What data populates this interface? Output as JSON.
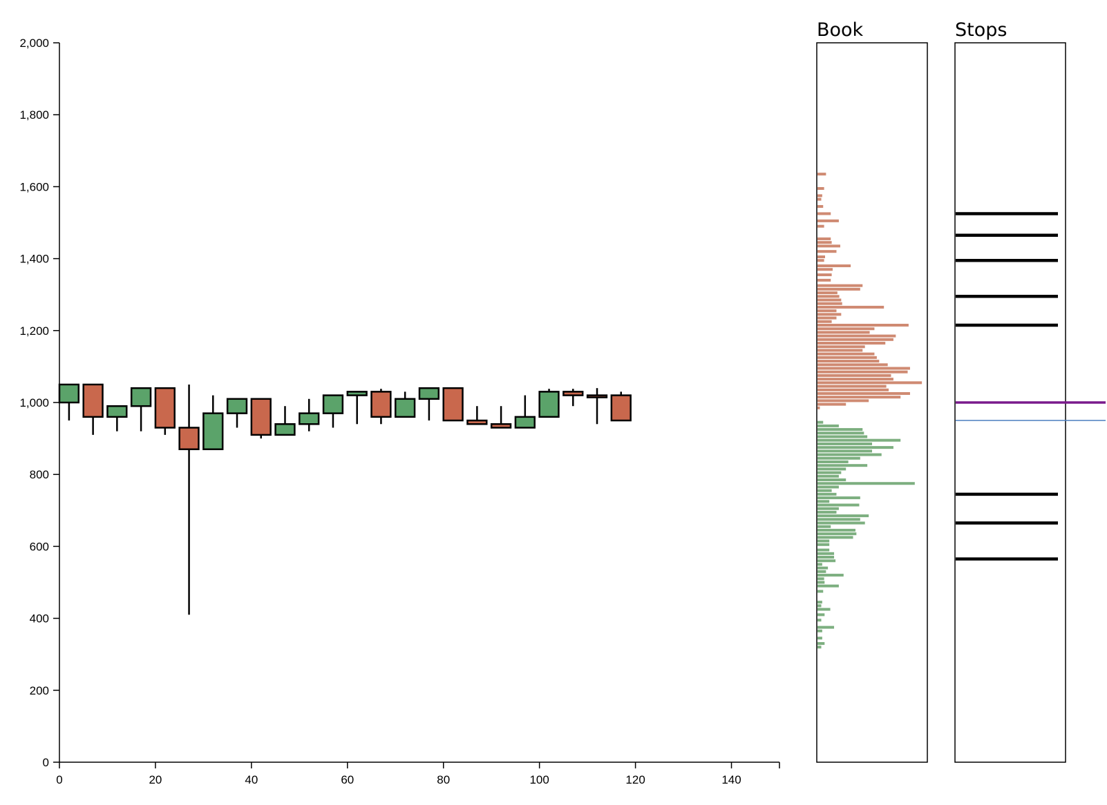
{
  "panels": {
    "book_title": "Book",
    "stops_title": "Stops"
  },
  "chart_data": [
    {
      "type": "candlestick",
      "xlim": [
        0,
        150
      ],
      "ylim": [
        0,
        2000
      ],
      "x_ticks": [
        0,
        20,
        40,
        60,
        80,
        100,
        120,
        140
      ],
      "y_ticks": [
        0,
        200,
        400,
        600,
        800,
        1000,
        1200,
        1400,
        1600,
        1800,
        2000
      ],
      "y_tick_labels": [
        "0",
        "200",
        "400",
        "600",
        "800",
        "1,000",
        "1,200",
        "1,400",
        "1,600",
        "1,800",
        "2,000"
      ],
      "x_tick_labels": [
        "0",
        "20",
        "40",
        "60",
        "80",
        "100",
        "120",
        "140"
      ],
      "colors": {
        "up": "#5ba36a",
        "down": "#c9684d",
        "stroke": "#000000"
      },
      "candles": [
        {
          "t": 0,
          "open": 1000,
          "close": 1050,
          "high": 1050,
          "low": 950
        },
        {
          "t": 5,
          "open": 1050,
          "close": 960,
          "high": 1050,
          "low": 910
        },
        {
          "t": 10,
          "open": 960,
          "close": 990,
          "high": 990,
          "low": 920
        },
        {
          "t": 15,
          "open": 990,
          "close": 1040,
          "high": 1040,
          "low": 920
        },
        {
          "t": 20,
          "open": 1040,
          "close": 930,
          "high": 1040,
          "low": 910
        },
        {
          "t": 25,
          "open": 930,
          "close": 870,
          "high": 1050,
          "low": 410
        },
        {
          "t": 30,
          "open": 870,
          "close": 970,
          "high": 1020,
          "low": 870
        },
        {
          "t": 35,
          "open": 970,
          "close": 1010,
          "high": 1010,
          "low": 930
        },
        {
          "t": 40,
          "open": 1010,
          "close": 910,
          "high": 1010,
          "low": 900
        },
        {
          "t": 45,
          "open": 910,
          "close": 940,
          "high": 990,
          "low": 910
        },
        {
          "t": 50,
          "open": 940,
          "close": 970,
          "high": 1010,
          "low": 920
        },
        {
          "t": 55,
          "open": 970,
          "close": 1020,
          "high": 1020,
          "low": 930
        },
        {
          "t": 60,
          "open": 1020,
          "close": 1030,
          "high": 1030,
          "low": 940
        },
        {
          "t": 65,
          "open": 1030,
          "close": 960,
          "high": 1038,
          "low": 940
        },
        {
          "t": 70,
          "open": 960,
          "close": 1010,
          "high": 1030,
          "low": 960
        },
        {
          "t": 75,
          "open": 1010,
          "close": 1040,
          "high": 1040,
          "low": 950
        },
        {
          "t": 80,
          "open": 1040,
          "close": 950,
          "high": 1040,
          "low": 950
        },
        {
          "t": 85,
          "open": 950,
          "close": 940,
          "high": 990,
          "low": 940
        },
        {
          "t": 90,
          "open": 940,
          "close": 930,
          "high": 990,
          "low": 930
        },
        {
          "t": 95,
          "open": 930,
          "close": 960,
          "high": 1020,
          "low": 930
        },
        {
          "t": 100,
          "open": 960,
          "close": 1030,
          "high": 1038,
          "low": 960
        },
        {
          "t": 105,
          "open": 1030,
          "close": 1020,
          "high": 1038,
          "low": 990
        },
        {
          "t": 110,
          "open": 1020,
          "close": 1015,
          "high": 1040,
          "low": 940
        },
        {
          "t": 115,
          "open": 1020,
          "close": 950,
          "high": 1030,
          "low": 950
        }
      ]
    },
    {
      "type": "bar",
      "orientation": "horizontal",
      "title": "Book",
      "ylim": [
        0,
        2000
      ],
      "xlim": [
        0,
        230
      ],
      "colors": {
        "asks": "#cf8a72",
        "bids": "#7daf80"
      },
      "asks": [
        [
          1635,
          18
        ],
        [
          1595,
          14
        ],
        [
          1575,
          10
        ],
        [
          1565,
          8
        ],
        [
          1545,
          12
        ],
        [
          1525,
          28
        ],
        [
          1505,
          45
        ],
        [
          1490,
          14
        ],
        [
          1455,
          28
        ],
        [
          1445,
          30
        ],
        [
          1435,
          48
        ],
        [
          1420,
          40
        ],
        [
          1405,
          16
        ],
        [
          1395,
          14
        ],
        [
          1380,
          70
        ],
        [
          1370,
          32
        ],
        [
          1355,
          30
        ],
        [
          1340,
          28
        ],
        [
          1325,
          95
        ],
        [
          1315,
          90
        ],
        [
          1305,
          42
        ],
        [
          1295,
          46
        ],
        [
          1285,
          50
        ],
        [
          1275,
          52
        ],
        [
          1265,
          140
        ],
        [
          1255,
          40
        ],
        [
          1245,
          50
        ],
        [
          1235,
          40
        ],
        [
          1225,
          30
        ],
        [
          1215,
          192
        ],
        [
          1205,
          120
        ],
        [
          1195,
          110
        ],
        [
          1185,
          165
        ],
        [
          1175,
          160
        ],
        [
          1165,
          143
        ],
        [
          1155,
          100
        ],
        [
          1145,
          95
        ],
        [
          1135,
          120
        ],
        [
          1125,
          125
        ],
        [
          1115,
          130
        ],
        [
          1105,
          148
        ],
        [
          1095,
          195
        ],
        [
          1085,
          190
        ],
        [
          1075,
          155
        ],
        [
          1065,
          160
        ],
        [
          1055,
          220
        ],
        [
          1045,
          145
        ],
        [
          1035,
          150
        ],
        [
          1025,
          195
        ],
        [
          1015,
          175
        ],
        [
          1005,
          108
        ],
        [
          995,
          60
        ],
        [
          985,
          5
        ]
      ],
      "bids": [
        [
          945,
          12
        ],
        [
          935,
          45
        ],
        [
          925,
          95
        ],
        [
          915,
          98
        ],
        [
          905,
          105
        ],
        [
          895,
          175
        ],
        [
          885,
          115
        ],
        [
          875,
          160
        ],
        [
          865,
          115
        ],
        [
          855,
          135
        ],
        [
          845,
          90
        ],
        [
          835,
          65
        ],
        [
          825,
          105
        ],
        [
          815,
          60
        ],
        [
          805,
          50
        ],
        [
          795,
          45
        ],
        [
          785,
          60
        ],
        [
          775,
          205
        ],
        [
          765,
          45
        ],
        [
          755,
          30
        ],
        [
          745,
          40
        ],
        [
          735,
          90
        ],
        [
          725,
          25
        ],
        [
          715,
          88
        ],
        [
          705,
          45
        ],
        [
          695,
          40
        ],
        [
          685,
          108
        ],
        [
          675,
          90
        ],
        [
          665,
          100
        ],
        [
          655,
          28
        ],
        [
          645,
          80
        ],
        [
          635,
          82
        ],
        [
          625,
          75
        ],
        [
          615,
          25
        ],
        [
          605,
          25
        ],
        [
          590,
          25
        ],
        [
          580,
          35
        ],
        [
          570,
          35
        ],
        [
          560,
          38
        ],
        [
          550,
          10
        ],
        [
          540,
          22
        ],
        [
          530,
          18
        ],
        [
          520,
          55
        ],
        [
          510,
          14
        ],
        [
          500,
          15
        ],
        [
          490,
          45
        ],
        [
          475,
          12
        ],
        [
          445,
          10
        ],
        [
          435,
          8
        ],
        [
          425,
          27
        ],
        [
          410,
          15
        ],
        [
          395,
          8
        ],
        [
          375,
          35
        ],
        [
          365,
          10
        ],
        [
          345,
          10
        ],
        [
          330,
          15
        ],
        [
          320,
          8
        ]
      ]
    },
    {
      "type": "line",
      "title": "Stops",
      "ylim": [
        0,
        2000
      ],
      "colors": {
        "stop": "#000000",
        "last_price": "#7a1a8c",
        "reference": "#4a7ebf"
      },
      "stops": [
        1525,
        1465,
        1395,
        1295,
        1215,
        745,
        665,
        565
      ],
      "last_price": 1000,
      "reference": 950
    }
  ]
}
